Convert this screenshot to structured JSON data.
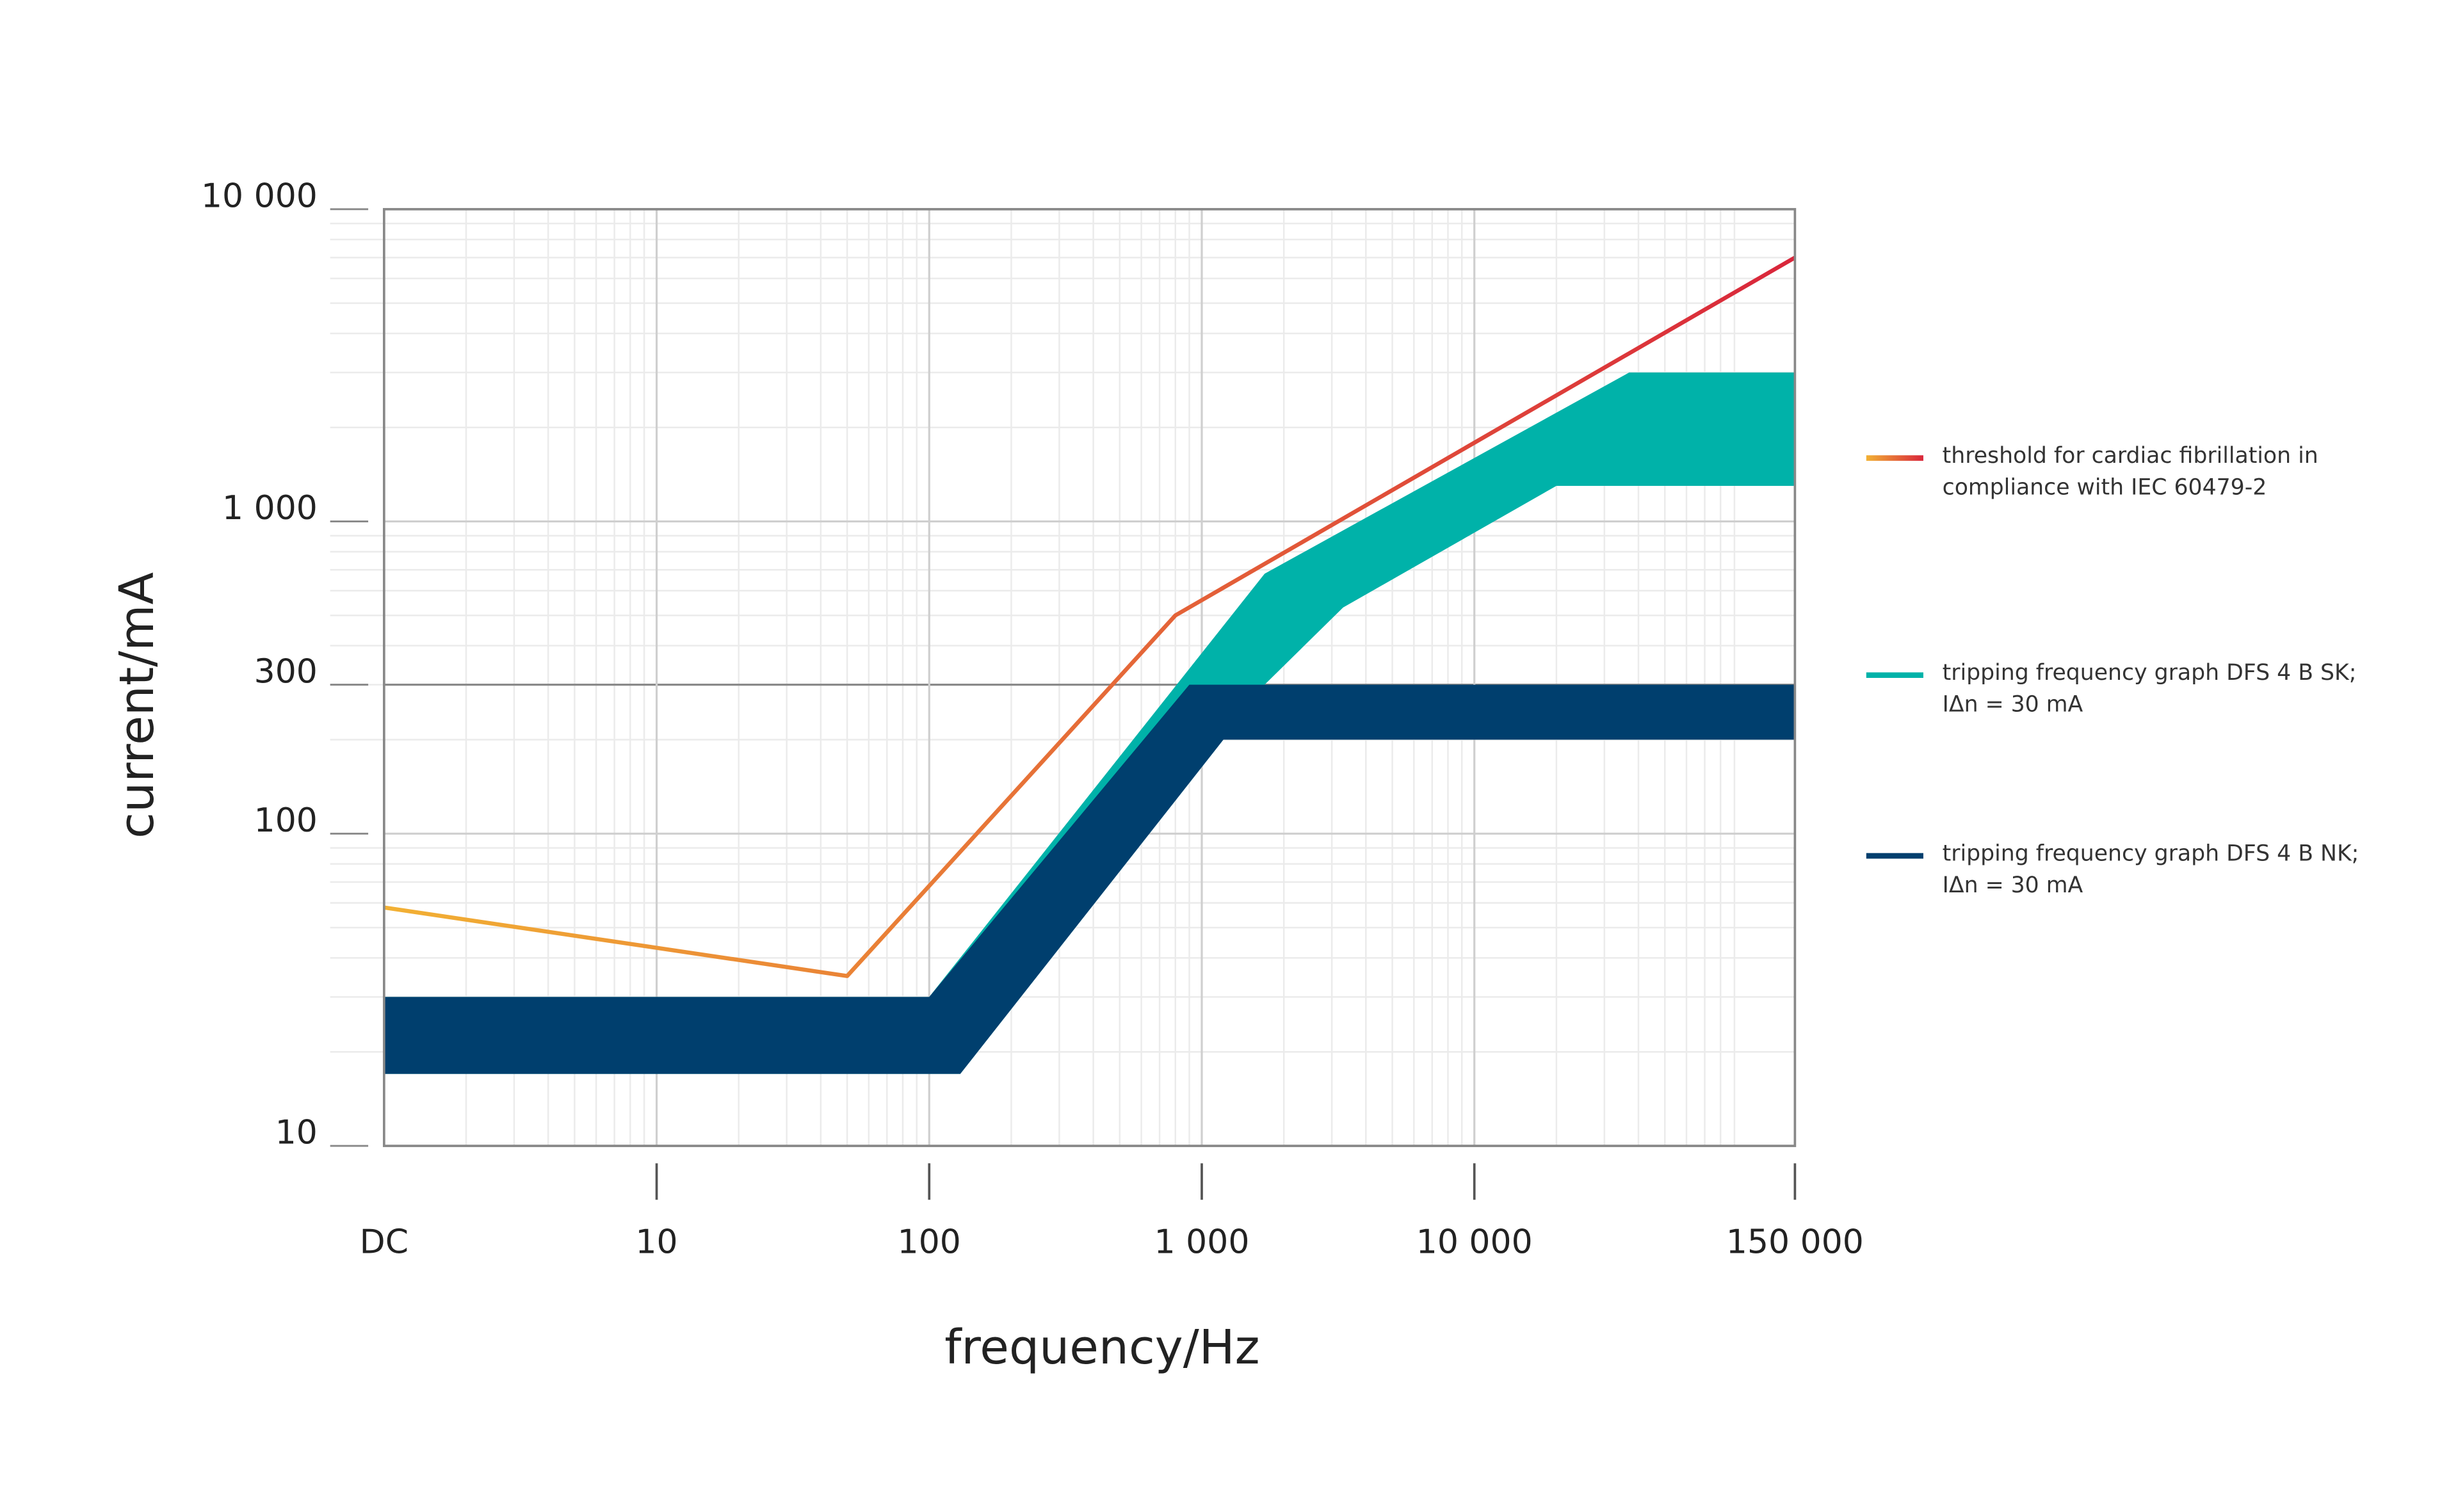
{
  "chart_data": {
    "type": "line",
    "x_label": "frequency/Hz",
    "y_label": "current/mA",
    "x_log": true,
    "y_log": true,
    "xlim": [
      1,
      150000
    ],
    "ylim": [
      10,
      10000
    ],
    "xticks": [
      {
        "value": 1,
        "label": "DC"
      },
      10,
      100,
      {
        "value": 1000,
        "label": "1 000"
      },
      {
        "value": 10000,
        "label": "10 000"
      },
      {
        "value": 150000,
        "label": "150 000",
        "color": "#d9263b"
      }
    ],
    "yticks": [
      10,
      100,
      300,
      {
        "value": 1000,
        "label": "1 000"
      },
      {
        "value": 10000,
        "label": "10 000"
      }
    ],
    "grid": true,
    "legend": "right",
    "series": [
      {
        "name": "threshold for cardiac fibrillation in compliance with IEC 60479-2",
        "kind": "line",
        "colors": [
          "#f2b134",
          "#d9263b"
        ],
        "x": [
          1,
          50,
          800,
          150000
        ],
        "values": [
          58,
          35,
          500,
          7000
        ]
      },
      {
        "name": "tripping frequency graph DFS 4 B SK; IΔn = 30 mA",
        "kind": "band",
        "color": "#00b2a9",
        "x_upper": [
          1,
          100,
          1700,
          37000,
          150000
        ],
        "upper": [
          30,
          30,
          680,
          3000,
          3000
        ],
        "x_lower": [
          1,
          130,
          1200,
          1700,
          3300,
          20000,
          150000
        ],
        "lower": [
          17,
          17,
          200,
          300,
          530,
          1300,
          1300
        ]
      },
      {
        "name": "tripping frequency graph DFS 4 B NK; IΔn = 30 mA",
        "kind": "band",
        "color": "#003f6e",
        "x_upper": [
          1,
          100,
          900,
          150000
        ],
        "upper": [
          30,
          30,
          300,
          300
        ],
        "x_lower": [
          1,
          130,
          1200,
          150000
        ],
        "lower": [
          17,
          17,
          200,
          200
        ]
      }
    ]
  }
}
